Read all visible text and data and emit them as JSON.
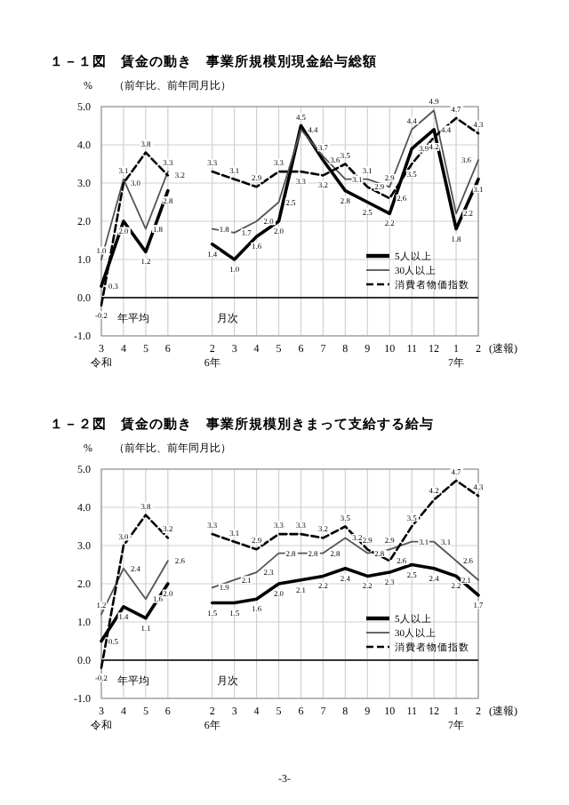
{
  "chart_data": [
    {
      "type": "line",
      "title": "１－１図　賃金の動き　事業所規模別現金給与総額",
      "subtitle": "（前年比、前年同月比）",
      "ylabel": "%",
      "categories": [
        "3\n令和",
        "4",
        "5",
        "6",
        null,
        "2\n6年",
        "3",
        "4",
        "5",
        "6",
        "7",
        "8",
        "9",
        "10",
        "11",
        "12",
        "1\n7年",
        "2"
      ],
      "series": [
        {
          "name": "5人以上",
          "color": "#000000",
          "line_style": "solid",
          "values": [
            0.3,
            2.0,
            1.2,
            2.8,
            null,
            1.4,
            1.0,
            1.6,
            2.0,
            4.5,
            3.6,
            2.8,
            2.5,
            2.2,
            3.9,
            4.4,
            1.8,
            3.1
          ],
          "value_labels": [
            "0.3",
            "2.0",
            "1.2",
            "2.8",
            null,
            "1.4",
            "1.0",
            "1.6",
            "2.0",
            "4.5",
            "3.6",
            "2.8",
            "2.5",
            "2.2",
            "3.9",
            "4.4",
            "1.8",
            "3.1"
          ]
        },
        {
          "name": "30人以上",
          "color": "#555555",
          "line_style": "solid",
          "values": [
            1.0,
            3.1,
            1.8,
            3.3,
            null,
            1.8,
            1.7,
            2.0,
            2.5,
            4.4,
            3.7,
            3.1,
            3.1,
            2.9,
            4.4,
            4.9,
            2.2,
            3.6
          ],
          "value_labels": [
            "1.0",
            "3.1",
            "1.8",
            "3.3",
            null,
            "1.8",
            "1.7",
            "2.0",
            "2.5",
            "4.4",
            "3.7",
            "3.1",
            "3.1",
            "2.9",
            "4.4",
            "4.9",
            "2.2",
            "3.6"
          ]
        },
        {
          "name": "消費者物価指数",
          "color": "#000000",
          "line_style": "dashed",
          "values": [
            -0.2,
            3.0,
            3.8,
            3.2,
            null,
            3.3,
            3.1,
            2.9,
            3.3,
            3.3,
            3.2,
            3.5,
            2.9,
            2.6,
            3.5,
            4.2,
            4.7,
            4.3
          ],
          "value_labels": [
            "-0.2",
            "3.0",
            "3.8",
            "3.2",
            null,
            "3.3",
            "3.1",
            "2.9",
            "3.3",
            "3.3",
            "3.2",
            "3.5",
            "2.9",
            "2.6",
            "3.5",
            "4.2",
            "4.7",
            "4.3"
          ]
        }
      ],
      "ylim": [
        -1,
        5
      ],
      "yticks": [
        {
          "value": -1,
          "label": "-1.0"
        },
        {
          "value": 0,
          "label": "0.0"
        },
        {
          "value": 1,
          "label": "1.0"
        },
        {
          "value": 2,
          "label": "2.0"
        },
        {
          "value": 3,
          "label": "3.0"
        },
        {
          "value": 4,
          "label": "4.0"
        },
        {
          "value": 5,
          "label": "5.0"
        }
      ],
      "grid": true,
      "legend": "bottom right",
      "ref_lines": [
        {
          "axis": "y",
          "value": 0,
          "color": "#333333"
        }
      ],
      "annotations": [
        "年平均",
        "月次",
        "(速報)"
      ]
    },
    {
      "type": "line",
      "title": "１－２図　賃金の動き　事業所規模別きまって支給する給与",
      "subtitle": "（前年比、前年同月比）",
      "ylabel": "%",
      "categories": [
        "3\n令和",
        "4",
        "5",
        "6",
        null,
        "2\n6年",
        "3",
        "4",
        "5",
        "6",
        "7",
        "8",
        "9",
        "10",
        "11",
        "12",
        "1\n7年",
        "2"
      ],
      "series": [
        {
          "name": "5人以上",
          "color": "#000000",
          "line_style": "solid",
          "values": [
            0.5,
            1.4,
            1.1,
            2.0,
            null,
            1.5,
            1.5,
            1.6,
            2.0,
            2.1,
            2.2,
            2.4,
            2.2,
            2.3,
            2.5,
            2.4,
            2.2,
            1.7
          ],
          "value_labels": [
            "0.5",
            "1.4",
            "1.1",
            "2.0",
            null,
            "1.5",
            "1.5",
            "1.6",
            "2.0",
            "2.1",
            "2.2",
            "2.4",
            "2.2",
            "2.3",
            "2.5",
            "2.4",
            "2.2",
            "1.7"
          ]
        },
        {
          "name": "30人以上",
          "color": "#555555",
          "line_style": "solid",
          "values": [
            1.2,
            2.4,
            1.6,
            2.6,
            null,
            1.9,
            2.1,
            2.3,
            2.8,
            2.8,
            2.8,
            3.2,
            2.8,
            2.9,
            3.1,
            3.1,
            2.6,
            2.1
          ],
          "value_labels": [
            "1.2",
            "2.4",
            "1.6",
            "2.6",
            null,
            "1.9",
            "2.1",
            "2.3",
            "2.8",
            "2.8",
            "2.8",
            "3.2",
            "2.8",
            "2.9",
            "3.1",
            "3.1",
            "2.6",
            "2.1"
          ]
        },
        {
          "name": "消費者物価指数",
          "color": "#000000",
          "line_style": "dashed",
          "values": [
            -0.2,
            3.0,
            3.8,
            3.2,
            null,
            3.3,
            3.1,
            2.9,
            3.3,
            3.3,
            3.2,
            3.5,
            2.9,
            2.6,
            3.5,
            4.2,
            4.7,
            4.3
          ],
          "value_labels": [
            "-0.2",
            "3.0",
            "3.8",
            "3.2",
            null,
            "3.3",
            "3.1",
            "2.9",
            "3.3",
            "3.3",
            "3.2",
            "3.5",
            "2.9",
            "2.6",
            "3.5",
            "4.2",
            "4.7",
            "4.3"
          ]
        }
      ],
      "ylim": [
        -1,
        5
      ],
      "yticks": [
        {
          "value": -1,
          "label": "-1.0"
        },
        {
          "value": 0,
          "label": "0.0"
        },
        {
          "value": 1,
          "label": "1.0"
        },
        {
          "value": 2,
          "label": "2.0"
        },
        {
          "value": 3,
          "label": "3.0"
        },
        {
          "value": 4,
          "label": "4.0"
        },
        {
          "value": 5,
          "label": "5.0"
        }
      ],
      "grid": true,
      "legend": "bottom right",
      "ref_lines": [
        {
          "axis": "y",
          "value": 0,
          "color": "#333333"
        }
      ],
      "annotations": [
        "年平均",
        "月次",
        "(速報)",
        "-3-"
      ]
    }
  ]
}
